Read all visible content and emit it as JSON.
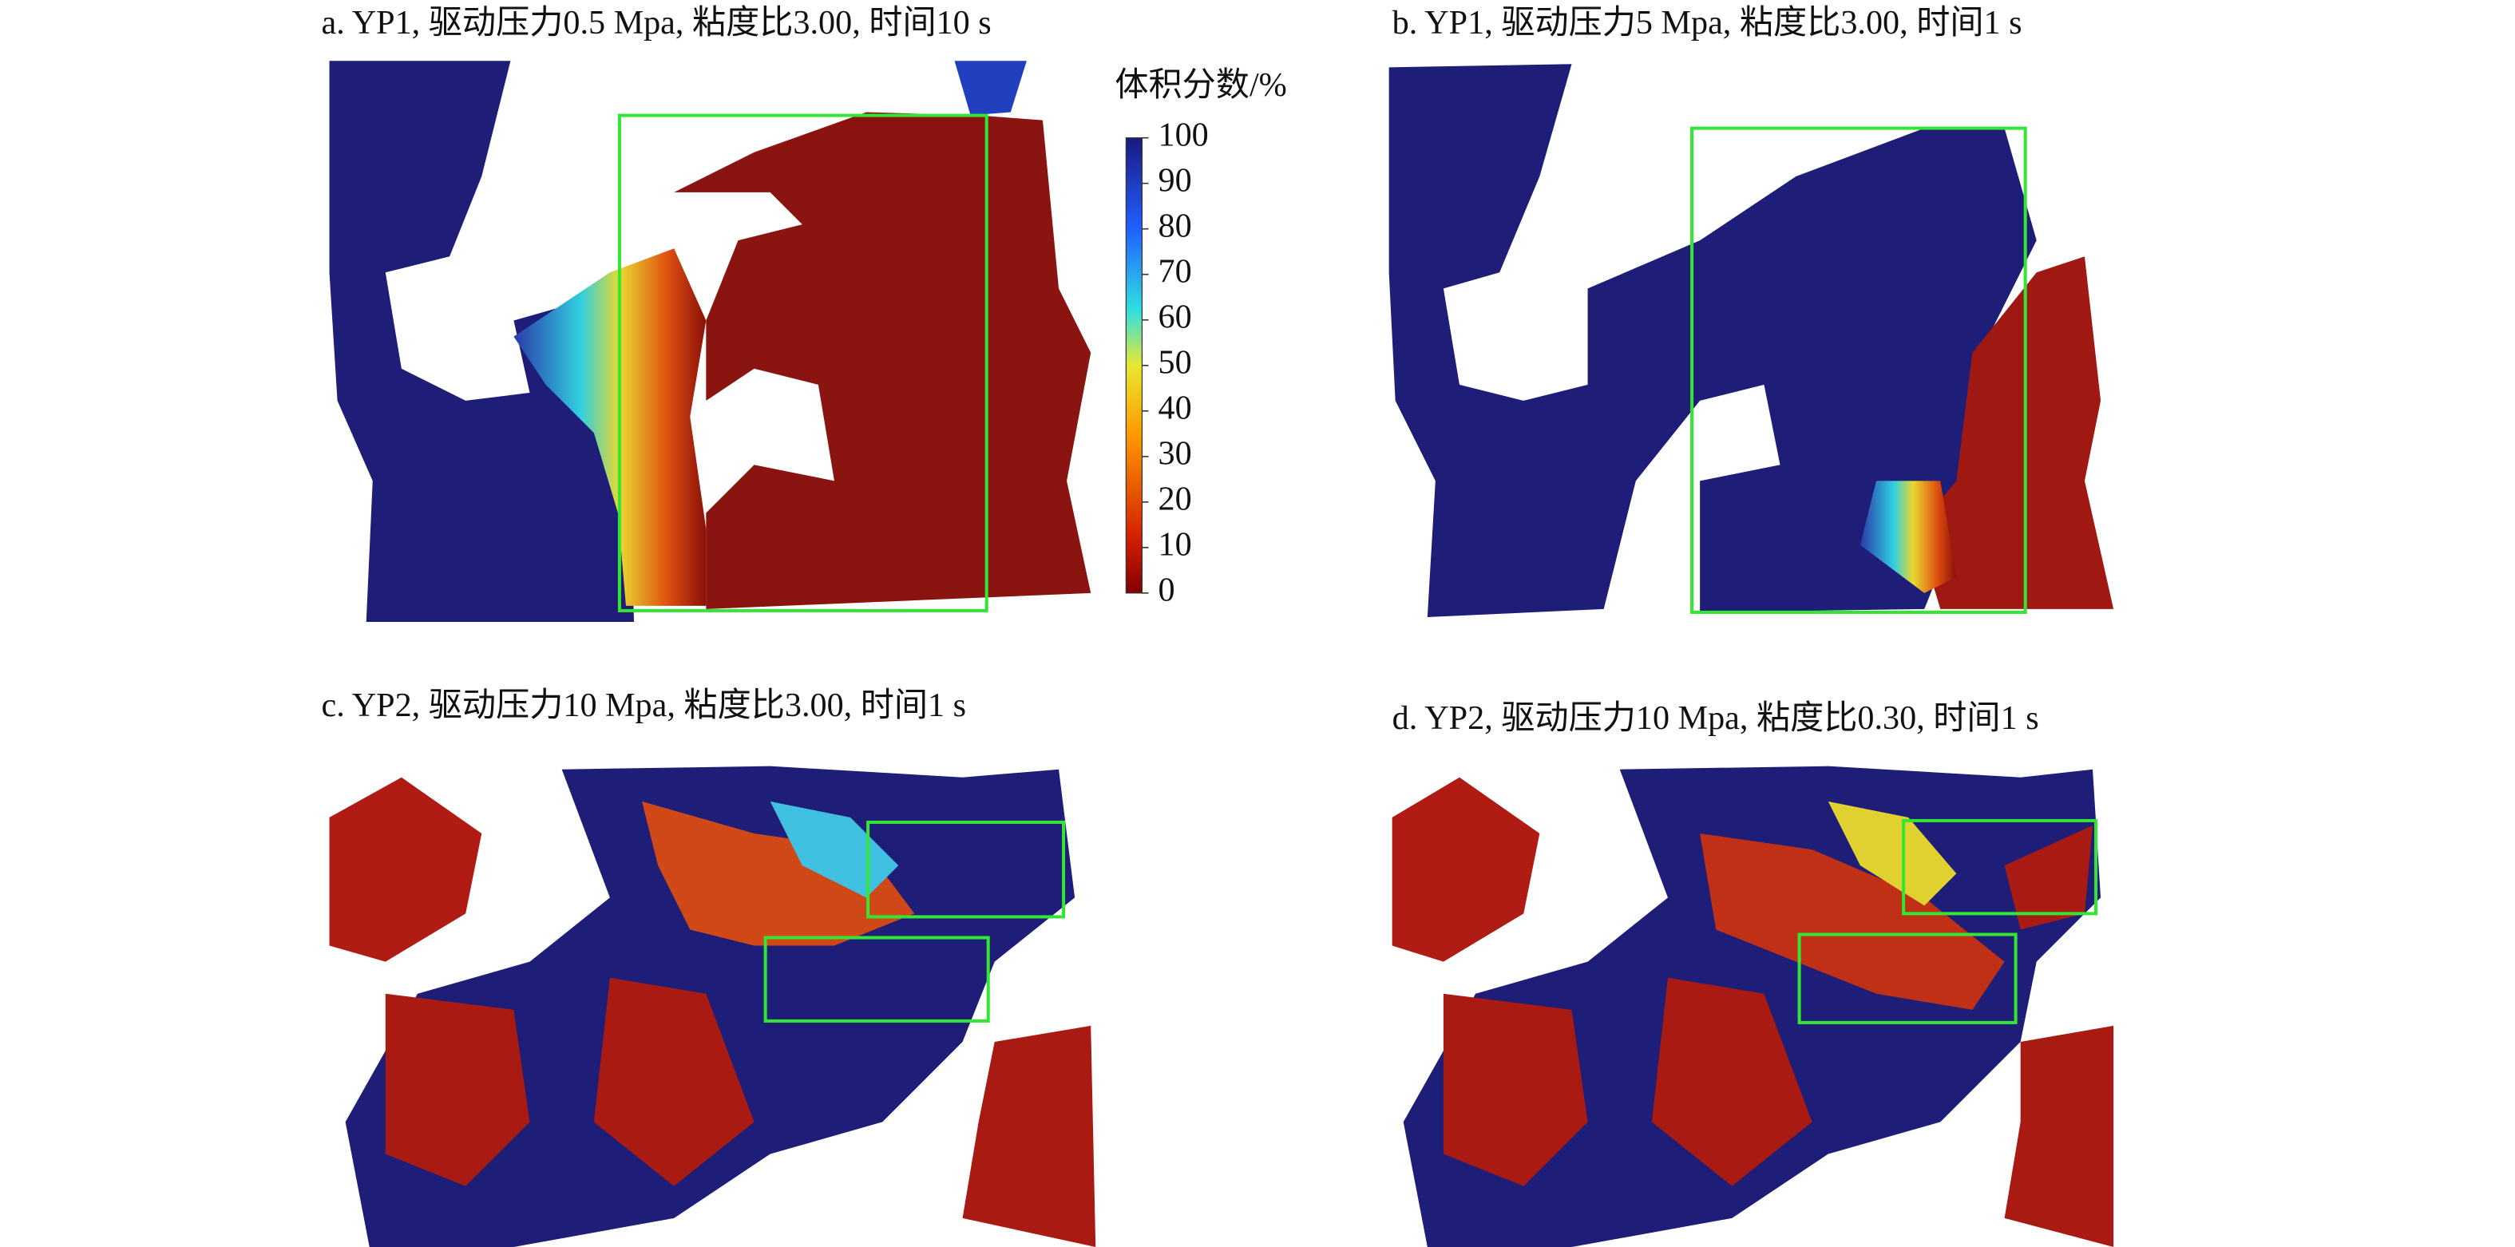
{
  "panels": [
    {
      "title": "a. YP1, 驱动压力0.5 Mpa, 粘度比3.00, 时间10 s"
    },
    {
      "title": "b. YP1, 驱动压力5 Mpa, 粘度比3.00, 时间1 s"
    },
    {
      "title": "c. YP2, 驱动压力10 Mpa, 粘度比3.00, 时间1 s"
    },
    {
      "title": "d. YP2, 驱动压力10 Mpa, 粘度比0.30, 时间1 s"
    }
  ],
  "colorbar": {
    "title": "体积分数/%",
    "lim": [
      0,
      100
    ],
    "ticks": [
      0,
      10,
      20,
      30,
      40,
      50,
      60,
      70,
      80,
      90,
      100
    ]
  }
}
